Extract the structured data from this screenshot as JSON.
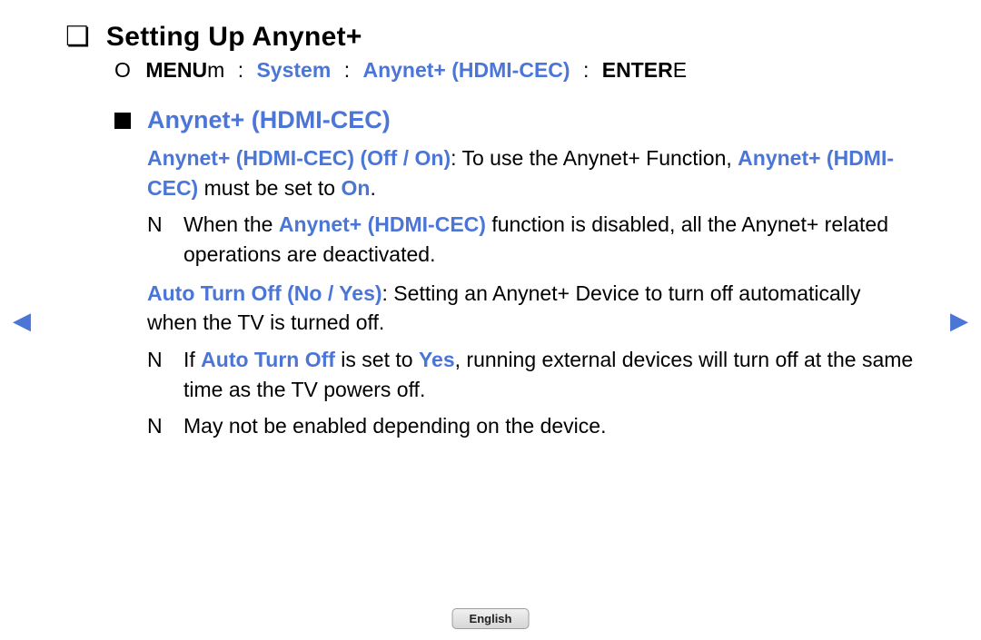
{
  "colors": {
    "accent_blue": "#4b75d6",
    "text_black": "#000000",
    "pill_bg_top": "#f0f0f0",
    "pill_bg_bottom": "#d6d6d6",
    "pill_border": "#9c9c9c"
  },
  "title": {
    "bullet": "❏",
    "text": "Setting Up Anynet+"
  },
  "breadcrumb": {
    "lead_icon": "O",
    "menu_label": "MENU",
    "menu_suffix": "m",
    "sep": ":",
    "system": "System",
    "anynet": "Anynet+ (HDMI-CEC)",
    "enter_label": "ENTER",
    "enter_suffix": "E"
  },
  "section": {
    "heading": "Anynet+ (HDMI-CEC)",
    "p1": {
      "lead_blue": "Anynet+ (HDMI-CEC) (Off / On)",
      "after_lead": ": To use the Anynet+ Function, ",
      "inline_blue": "Anynet+ (HDMI-CEC)",
      "mid": " must be set to ",
      "on_word": "On",
      "tail": "."
    },
    "note1": {
      "mark": "N",
      "pre": "When the ",
      "blue": "Anynet+ (HDMI-CEC)",
      "post": " function is disabled, all the Anynet+ related operations are deactivated."
    },
    "p2": {
      "lead_blue": "Auto Turn Off (No / Yes)",
      "after_lead": ": Setting an Anynet+ Device to turn off automatically when the TV is turned off."
    },
    "note2": {
      "mark": "N",
      "pre": "If ",
      "blue1": "Auto Turn Off",
      "mid1": " is set to ",
      "blue2": "Yes",
      "post": ", running external devices will turn off at the same time as the TV powers off."
    },
    "note3": {
      "mark": "N",
      "text": "May not be enabled depending on the device."
    }
  },
  "nav": {
    "left_glyph": "◀",
    "right_glyph": "▶"
  },
  "language_pill": "English"
}
